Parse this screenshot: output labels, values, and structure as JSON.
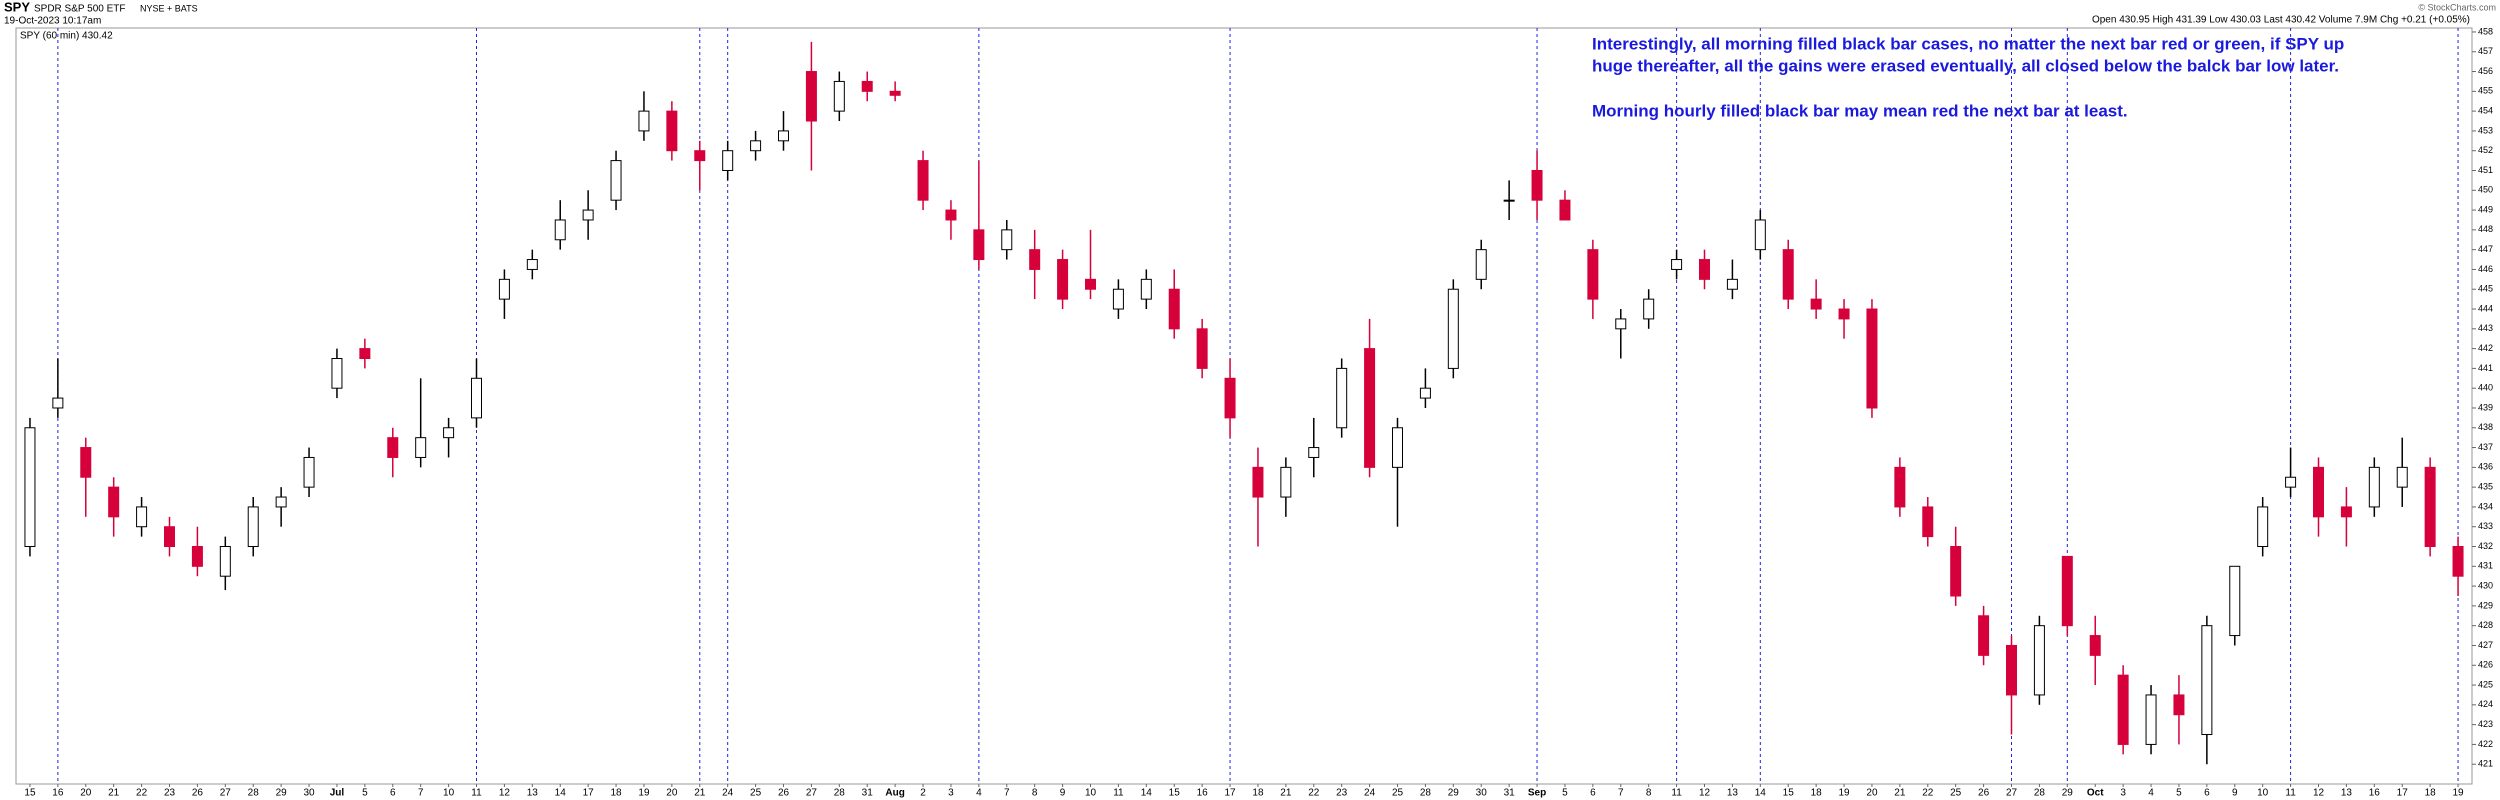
{
  "chart_data": {
    "type": "candlestick",
    "symbol": "SPY",
    "title": "SPDR S&P 500 ETF",
    "exchange": "NYSE + BATS",
    "date": "19-Oct-2023 10:17am",
    "legend": "SPY (60 min) 430.42",
    "quote": "Open 430.95 High 431.39 Low 430.03 Last 430.42 Volume 7.9M Chg +0.21 (+0.05%)",
    "credit": "© StockCharts.com",
    "annotation": [
      "Interestingly, all morning filled black bar cases, no matter the next bar red or green, if SPY up",
      "huge thereafter, all the gains were erased eventually, all closed below the balck bar low later.",
      "Morning hourly filled black bar may mean red the next bar at least."
    ],
    "categories": [
      "15",
      "16",
      "20",
      "21",
      "22",
      "23",
      "26",
      "27",
      "28",
      "29",
      "30",
      "Jul",
      "5",
      "6",
      "7",
      "10",
      "11",
      "12",
      "13",
      "14",
      "17",
      "18",
      "19",
      "20",
      "21",
      "24",
      "25",
      "26",
      "27",
      "28",
      "31",
      "Aug",
      "2",
      "3",
      "4",
      "7",
      "8",
      "9",
      "10",
      "11",
      "14",
      "15",
      "16",
      "17",
      "18",
      "21",
      "22",
      "23",
      "24",
      "25",
      "28",
      "29",
      "30",
      "31",
      "Sep",
      "5",
      "6",
      "7",
      "8",
      "11",
      "12",
      "13",
      "14",
      "15",
      "18",
      "19",
      "20",
      "21",
      "22",
      "25",
      "26",
      "27",
      "28",
      "29",
      "Oct",
      "3",
      "4",
      "5",
      "6",
      "9",
      "10",
      "11",
      "12",
      "13",
      "16",
      "17",
      "18",
      "19"
    ],
    "open": [
      432,
      439,
      437,
      435,
      433,
      433,
      432,
      430.5,
      432,
      434,
      435,
      440,
      442,
      437.5,
      436.5,
      437.5,
      438.5,
      444.5,
      446,
      447.5,
      448.5,
      449.5,
      453,
      454,
      452,
      451,
      452,
      452.5,
      456,
      454,
      455.5,
      455,
      451.5,
      449,
      448,
      447,
      447,
      446.5,
      445.5,
      444,
      444.5,
      445,
      443,
      440.5,
      436,
      434.5,
      436.5,
      438,
      442,
      436,
      439.5,
      441,
      445.5,
      449.5,
      451,
      449.5,
      447,
      443,
      443.5,
      446,
      446.5,
      445,
      447,
      447,
      444.5,
      444,
      444,
      436,
      434,
      432,
      428.5,
      427,
      424.5,
      431.5,
      427.5,
      425.5,
      422,
      424.5,
      422.5,
      427.5,
      432,
      435,
      436,
      434,
      434,
      435,
      436,
      432
    ],
    "high": [
      438.5,
      441.5,
      437.5,
      435.5,
      434.5,
      433.5,
      433,
      432.5,
      434.5,
      435,
      437,
      442,
      442.5,
      438,
      440.5,
      438.5,
      441.5,
      446,
      447,
      449.5,
      450,
      452,
      455,
      454.5,
      452.5,
      452.5,
      453,
      454,
      457.5,
      456,
      456,
      455.5,
      452,
      449.5,
      451.5,
      448.5,
      448,
      447,
      448,
      445.5,
      446,
      446,
      443.5,
      441.5,
      437,
      436.5,
      438.5,
      441.5,
      443.5,
      438.5,
      441,
      445.5,
      447.5,
      450.5,
      452,
      450,
      447.5,
      444,
      445,
      447,
      447,
      446.5,
      449,
      447.5,
      445.5,
      444.5,
      444.5,
      436.5,
      434.5,
      433,
      429,
      427.5,
      428.5,
      431.5,
      428.5,
      426,
      425,
      425.5,
      428.5,
      431,
      434.5,
      437,
      436.5,
      435,
      436.5,
      437.5,
      436.5,
      432.5
    ],
    "low": [
      431.5,
      438.5,
      433.5,
      432.5,
      432.5,
      431.5,
      430.5,
      429.8,
      431.5,
      433,
      434.5,
      439.5,
      441,
      435.5,
      436,
      436.5,
      438,
      443.5,
      445.5,
      447,
      447.5,
      449,
      452.5,
      451.5,
      450,
      450.5,
      451.5,
      452,
      451,
      453.5,
      454.5,
      454.5,
      449,
      447.5,
      446,
      446.5,
      444.5,
      444,
      444.5,
      443.5,
      444,
      442.5,
      440.5,
      437.5,
      432,
      433.5,
      435.5,
      437.5,
      435.5,
      433,
      439,
      440.5,
      445,
      448.5,
      448.5,
      448.5,
      443.5,
      441.5,
      443,
      445.5,
      445,
      444.5,
      446.5,
      444,
      443.5,
      442.5,
      438.5,
      433.5,
      432,
      429,
      426,
      422.5,
      424,
      427.5,
      425,
      421.5,
      421.5,
      422,
      421,
      427,
      431.5,
      434.5,
      432.5,
      432,
      433.5,
      434,
      431.5,
      429.5
    ],
    "close": [
      438,
      439.5,
      435.5,
      433.5,
      434,
      432,
      431,
      432,
      434,
      434.5,
      436.5,
      441.5,
      441.5,
      436.5,
      437.5,
      438,
      440.5,
      445.5,
      446.5,
      448.5,
      449,
      451.5,
      454,
      452,
      451.5,
      452,
      452.5,
      453,
      453.5,
      455.5,
      455,
      454.8,
      449.5,
      448.5,
      446.5,
      448,
      446,
      444.5,
      445,
      445,
      445.5,
      443,
      441,
      438.5,
      434.5,
      436,
      437,
      441,
      436,
      438,
      440,
      445,
      447,
      449.5,
      449.5,
      448.5,
      444.5,
      443.5,
      444.5,
      446.5,
      445.5,
      445.5,
      448.5,
      444.5,
      444,
      443.5,
      439,
      434,
      432.5,
      429.5,
      426.5,
      424.5,
      428,
      428,
      426.5,
      422,
      424.5,
      423.5,
      428,
      431,
      434,
      435.5,
      433.5,
      433.5,
      436,
      436,
      432,
      430.5
    ],
    "up_color": "#ffffff",
    "down_color": "#d6003a",
    "vlines": [
      1,
      16,
      24,
      25,
      34,
      43,
      54,
      59,
      62,
      71,
      73,
      81,
      87
    ],
    "vline_color": "#2222dd",
    "ylim": [
      420,
      458.2
    ],
    "yticks": [
      421,
      422,
      423,
      424,
      425,
      426,
      427,
      428,
      429,
      430,
      431,
      432,
      433,
      434,
      435,
      436,
      437,
      438,
      439,
      440,
      441,
      442,
      443,
      444,
      445,
      446,
      447,
      448,
      449,
      450,
      451,
      452,
      453,
      454,
      455,
      456,
      457,
      458
    ]
  }
}
